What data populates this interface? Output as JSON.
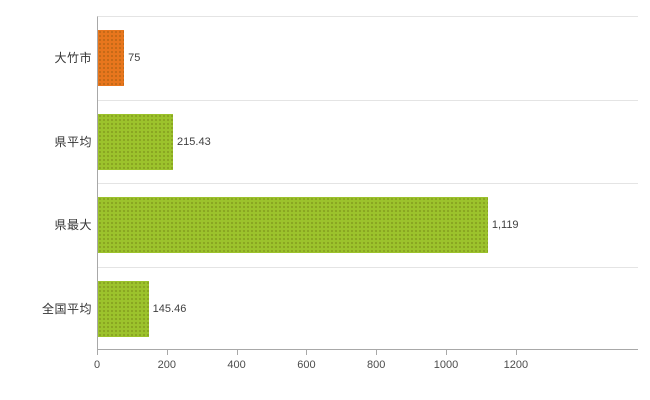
{
  "chart_data": {
    "type": "bar",
    "orientation": "horizontal",
    "title": "",
    "xlabel": "",
    "ylabel": "",
    "categories": [
      "大竹市",
      "県平均",
      "県最大",
      "全国平均"
    ],
    "values": [
      75,
      215.43,
      1119,
      145.46
    ],
    "value_labels": [
      "75",
      "215.43",
      "1,119",
      "145.46"
    ],
    "bar_colors": [
      "#e8761d",
      "#9cc32c",
      "#9cc32c",
      "#9cc32c"
    ],
    "xlim": [
      0,
      1550
    ],
    "x_ticks": [
      0,
      200,
      400,
      600,
      800,
      1000,
      1200
    ],
    "x_tick_labels": [
      "0",
      "200",
      "400",
      "600",
      "800",
      "1000",
      "1200"
    ],
    "grid": true,
    "grid_color": "#e4e4e4",
    "axis_color": "#a8a8a8",
    "legend": "none",
    "background": "#ffffff",
    "bar_texture": "dotted-pattern"
  }
}
